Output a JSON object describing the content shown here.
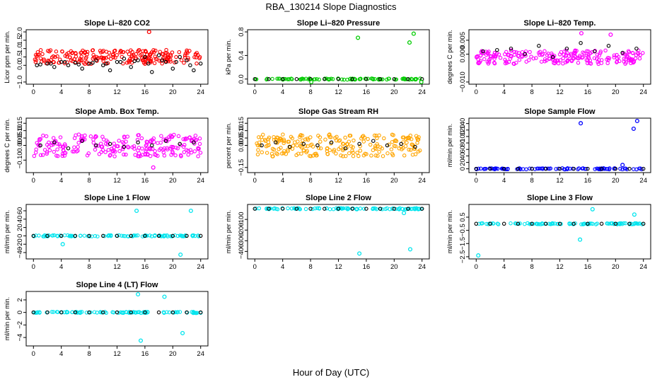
{
  "figure": {
    "title": "RBA_130214  Slope Diagnostics",
    "xlabel": "Hour of Day (UTC)"
  },
  "chart_data": [
    {
      "type": "scatter",
      "title": "Slope Li–820 CO2",
      "ylabel": "Licor ppm per min.",
      "xlim": [
        0,
        24
      ],
      "ylim": [
        -1.0,
        2.0
      ],
      "xticks": [
        "0",
        "4",
        "8",
        "12",
        "16",
        "20",
        "24"
      ],
      "yticks": [
        "−1.0",
        "0.0",
        "0.5",
        "1.0",
        "1.5",
        "2.0"
      ],
      "ytick_values": [
        -1.0,
        0.0,
        0.5,
        1.0,
        1.5,
        2.0
      ],
      "color": "#ff0000",
      "series": [
        {
          "x": [
            1,
            2,
            3,
            4,
            5,
            6,
            7,
            8,
            9,
            10,
            11,
            12,
            13,
            14,
            15,
            16,
            17,
            18,
            19,
            20,
            21,
            22,
            23,
            24
          ],
          "values": [
            0.05,
            0.1,
            -0.1,
            0.2,
            0.0,
            0.15,
            -0.2,
            0.1,
            0.3,
            0.0,
            -0.3,
            0.2,
            0.4,
            -0.1,
            0.3,
            0.5,
            -0.4,
            0.6,
            0.2,
            -0.2,
            0.5,
            0.3,
            -0.3,
            0.1
          ]
        },
        {
          "x": [
            0.5,
            2.5,
            4.5,
            6.5,
            8.5,
            10.5,
            12.5,
            14.5,
            16.5,
            18.5,
            20.5,
            22.5
          ],
          "values": [
            0.0,
            0.1,
            0.2,
            0.05,
            0.15,
            0.1,
            0.2,
            0.25,
            0.1,
            0.3,
            0.2,
            0.0
          ]
        }
      ],
      "outliers": {
        "x": [
          16.6
        ],
        "values": [
          2.0
        ]
      }
    },
    {
      "type": "scatter",
      "title": "Slope Li–820 Pressure",
      "ylabel": "kPa per min.",
      "xlim": [
        0,
        24
      ],
      "ylim": [
        -0.05,
        0.8
      ],
      "xticks": [
        "0",
        "4",
        "8",
        "12",
        "16",
        "20",
        "24"
      ],
      "yticks": [
        "0.0",
        "0.4",
        "0.8"
      ],
      "ytick_values": [
        0.0,
        0.4,
        0.8
      ],
      "color": "#00cc00",
      "series": [
        {
          "x": [
            0,
            2,
            4,
            6,
            8,
            10,
            12,
            14,
            16,
            18,
            20,
            22,
            24
          ],
          "values": [
            0.0,
            0.0,
            0.0,
            0.0,
            0.0,
            0.0,
            0.0,
            0.0,
            0.0,
            0.0,
            0.0,
            0.0,
            0.0
          ]
        }
      ],
      "outliers": {
        "x": [
          14.8,
          22.2,
          22.8,
          8.1,
          23.9
        ],
        "values": [
          0.7,
          0.62,
          0.77,
          -0.05,
          -0.05
        ]
      }
    },
    {
      "type": "scatter",
      "title": "Slope Li–820 Temp.",
      "ylabel": "degrees C per min.",
      "xlim": [
        0,
        24
      ],
      "ylim": [
        -0.01,
        0.008
      ],
      "xticks": [
        "0",
        "4",
        "8",
        "12",
        "16",
        "20",
        "24"
      ],
      "yticks": [
        "−0.010",
        "0.000",
        "0.005"
      ],
      "ytick_values": [
        -0.01,
        0.0,
        0.005
      ],
      "color": "#ff00ff",
      "series": [
        {
          "x": [
            1,
            3,
            5,
            7,
            9,
            11,
            13,
            15,
            17,
            19,
            21,
            23
          ],
          "values": [
            0.001,
            0.0015,
            0.002,
            0.0,
            0.003,
            -0.001,
            0.002,
            0.004,
            0.001,
            0.003,
            0.0005,
            0.002
          ]
        }
      ],
      "outliers": {
        "x": [
          15.1,
          19.3
        ],
        "values": [
          0.0075,
          0.007
        ]
      }
    },
    {
      "type": "scatter",
      "title": "Slope Amb. Box Temp.",
      "ylabel": "degrees C per min.",
      "xlim": [
        0,
        24
      ],
      "ylim": [
        -0.17,
        0.17
      ],
      "xticks": [
        "0",
        "4",
        "8",
        "12",
        "16",
        "20",
        "24"
      ],
      "yticks": [
        "−0.10",
        "0.00",
        "0.05",
        "0.10",
        "0.15"
      ],
      "ytick_values": [
        -0.1,
        0.0,
        0.05,
        0.1,
        0.15
      ],
      "color": "#ff00ff",
      "series": [
        {
          "x": [
            1,
            3,
            5,
            7,
            9,
            11,
            13,
            15,
            17,
            19,
            21,
            23
          ],
          "values": [
            0.0,
            0.02,
            -0.02,
            0.03,
            0.0,
            0.01,
            -0.01,
            0.02,
            0.0,
            0.03,
            0.01,
            0.02
          ]
        }
      ],
      "outliers": {
        "x": [
          17.2
        ],
        "values": [
          -0.15
        ]
      }
    },
    {
      "type": "scatter",
      "title": "Slope Gas Stream RH",
      "ylabel": "percent per min.",
      "xlim": [
        0,
        24
      ],
      "ylim": [
        -0.17,
        0.17
      ],
      "xticks": [
        "0",
        "4",
        "8",
        "12",
        "16",
        "20",
        "24"
      ],
      "yticks": [
        "−0.15",
        "0.00",
        "0.05",
        "0.10",
        "0.15"
      ],
      "ytick_values": [
        -0.15,
        0.0,
        0.05,
        0.1,
        0.15
      ],
      "color": "#ffa500",
      "series": [
        {
          "x": [
            1,
            3,
            5,
            7,
            9,
            11,
            13,
            15,
            17,
            19,
            21,
            23
          ],
          "values": [
            0.0,
            0.02,
            -0.01,
            0.01,
            0.0,
            0.02,
            -0.02,
            0.01,
            0.03,
            0.0,
            0.01,
            -0.01
          ]
        }
      ],
      "outliers": {
        "x": [],
        "values": []
      }
    },
    {
      "type": "scatter",
      "title": "Slope Sample Flow",
      "ylabel": "ml/min per min.",
      "xlim": [
        0,
        24
      ],
      "ylim": [
        -5,
        150
      ],
      "xticks": [
        "0",
        "4",
        "8",
        "12",
        "16",
        "20",
        "24"
      ],
      "yticks": [
        "0",
        "20",
        "40",
        "60",
        "80",
        "100",
        "120",
        "140"
      ],
      "ytick_values": [
        0,
        20,
        40,
        60,
        80,
        100,
        120,
        140
      ],
      "color": "#0000ff",
      "series": [
        {
          "x": [
            0,
            2,
            4,
            6,
            8,
            10,
            12,
            14,
            16,
            18,
            20,
            22,
            24
          ],
          "values": [
            0,
            0,
            0,
            0,
            0,
            0,
            0,
            0,
            0,
            0,
            0,
            0,
            0
          ]
        }
      ],
      "outliers": {
        "x": [
          15.0,
          21.0,
          22.6,
          23.1
        ],
        "values": [
          141,
          12,
          124,
          148
        ]
      }
    },
    {
      "type": "scatter",
      "title": "Slope Line 1 Flow",
      "ylabel": "ml/min per min.",
      "xlim": [
        0,
        24
      ],
      "ylim": [
        -50,
        70
      ],
      "xticks": [
        "0",
        "4",
        "8",
        "12",
        "16",
        "20",
        "24"
      ],
      "yticks": [
        "−40",
        "−20",
        "0",
        "20",
        "40",
        "60"
      ],
      "ytick_values": [
        -40,
        -20,
        0,
        20,
        40,
        60
      ],
      "color": "#00e5ee",
      "series": [
        {
          "x": [
            0,
            2,
            4,
            6,
            8,
            10,
            12,
            14,
            16,
            18,
            20,
            22,
            24
          ],
          "values": [
            0,
            0,
            0,
            0,
            0,
            0,
            0,
            0,
            0,
            0,
            0,
            0,
            0
          ]
        }
      ],
      "outliers": {
        "x": [
          14.8,
          22.6,
          4.2,
          21.1
        ],
        "values": [
          60,
          60,
          -20,
          -45
        ]
      }
    },
    {
      "type": "scatter",
      "title": "Slope Line 2 Flow",
      "ylabel": "ml/min per min.",
      "xlim": [
        0,
        24
      ],
      "ylim": [
        -450,
        20
      ],
      "xticks": [
        "0",
        "4",
        "8",
        "12",
        "16",
        "20",
        "24"
      ],
      "yticks": [
        "−400",
        "−300",
        "−200",
        "−100"
      ],
      "ytick_values": [
        -400,
        -300,
        -200,
        -100
      ],
      "color": "#00e5ee",
      "series": [
        {
          "x": [
            0,
            2,
            4,
            6,
            8,
            10,
            12,
            14,
            16,
            18,
            20,
            22,
            24
          ],
          "values": [
            0,
            0,
            0,
            0,
            0,
            0,
            0,
            0,
            0,
            0,
            0,
            0,
            0
          ]
        }
      ],
      "outliers": {
        "x": [
          15.0,
          22.3,
          21.4
        ],
        "values": [
          -420,
          -380,
          -40
        ]
      }
    },
    {
      "type": "scatter",
      "title": "Slope Line 3 Flow",
      "ylabel": "ml/min per min.",
      "xlim": [
        0,
        24
      ],
      "ylim": [
        -2.5,
        1.3
      ],
      "xticks": [
        "0",
        "4",
        "8",
        "12",
        "16",
        "20",
        "24"
      ],
      "yticks": [
        "−2.5",
        "−1.5",
        "−0.5",
        "0.5"
      ],
      "ytick_values": [
        -2.5,
        -1.5,
        -0.5,
        0.5
      ],
      "color": "#00e5ee",
      "series": [
        {
          "x": [
            0,
            2,
            4,
            6,
            8,
            10,
            12,
            14,
            16,
            18,
            20,
            22,
            24
          ],
          "values": [
            0,
            0,
            0,
            0,
            0,
            0,
            0,
            0,
            0,
            0,
            0,
            0,
            0
          ]
        }
      ],
      "outliers": {
        "x": [
          0.3,
          14.9,
          16.7,
          22.7
        ],
        "values": [
          -2.4,
          -1.2,
          1.1,
          0.7
        ]
      }
    },
    {
      "type": "scatter",
      "title": "Slope Line 4 (LT) Flow",
      "ylabel": "ml/min per min.",
      "xlim": [
        0,
        24
      ],
      "ylim": [
        -5,
        3
      ],
      "xticks": [
        "0",
        "4",
        "8",
        "12",
        "16",
        "20",
        "24"
      ],
      "yticks": [
        "−4",
        "−2",
        "0",
        "2"
      ],
      "ytick_values": [
        -4,
        -2,
        0,
        2
      ],
      "color": "#00e5ee",
      "series": [
        {
          "x": [
            0,
            2,
            4,
            6,
            8,
            10,
            12,
            14,
            16,
            18,
            20,
            22,
            24
          ],
          "values": [
            0,
            0,
            0,
            0,
            0,
            0,
            0,
            0,
            0,
            0,
            0,
            0,
            0
          ]
        }
      ],
      "outliers": {
        "x": [
          15.4,
          18.8,
          21.4,
          15.0
        ],
        "values": [
          -4.5,
          2.5,
          -3.3,
          2.9
        ]
      }
    }
  ]
}
